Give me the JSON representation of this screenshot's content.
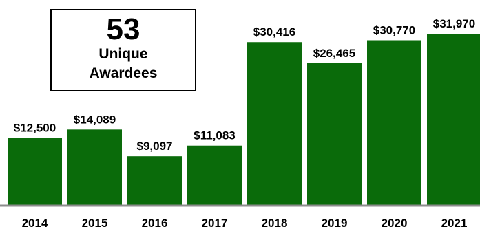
{
  "chart_data": {
    "type": "bar",
    "categories": [
      "2014",
      "2015",
      "2016",
      "2017",
      "2018",
      "2019",
      "2020",
      "2021"
    ],
    "values": [
      12500,
      14089,
      9097,
      11083,
      30416,
      26465,
      30770,
      31970
    ],
    "value_labels": [
      "$12,500",
      "$14,089",
      "$9,097",
      "$11,083",
      "$30,416",
      "$26,465",
      "$30,770",
      "$31,970"
    ],
    "ylim": [
      0,
      37000
    ],
    "grid": false,
    "bar_color": "#0a6b0a",
    "axis_color": "#8c8c8c"
  },
  "callout": {
    "number": "53",
    "label_line1": "Unique",
    "label_line2": "Awardees"
  }
}
